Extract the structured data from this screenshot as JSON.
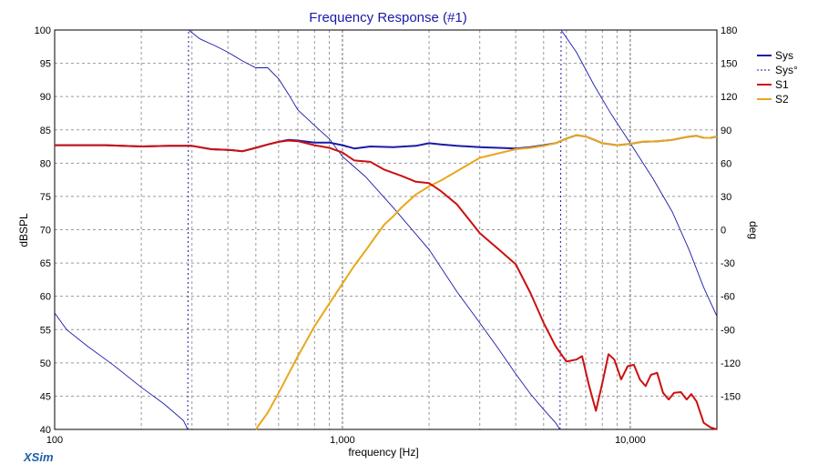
{
  "chart_data": {
    "type": "line",
    "title": "Frequency Response (#1)",
    "xlabel": "frequency [Hz]",
    "ylabel": "dBSPL",
    "y2label": "deg",
    "x_scale": "log",
    "xlim": [
      100,
      20000
    ],
    "ylim": [
      40,
      100
    ],
    "y2lim": [
      -180,
      180
    ],
    "x_tick_labels": [
      {
        "value": 100,
        "label": "100"
      },
      {
        "value": 1000,
        "label": "1,000"
      },
      {
        "value": 10000,
        "label": "10,000"
      }
    ],
    "y_ticks": [
      40,
      45,
      50,
      55,
      60,
      65,
      70,
      75,
      80,
      85,
      90,
      95,
      100
    ],
    "y2_ticks": [
      -150,
      -120,
      -90,
      -60,
      -30,
      0,
      30,
      60,
      90,
      120,
      150,
      180
    ],
    "grid": true,
    "legend_position": "top-right",
    "brand": "XSim",
    "series": [
      {
        "name": "Sys",
        "axis": "left",
        "style": "solid",
        "color": "#1a1aa8",
        "points": [
          [
            100,
            82.7
          ],
          [
            150,
            82.7
          ],
          [
            200,
            82.5
          ],
          [
            250,
            82.6
          ],
          [
            300,
            82.6
          ],
          [
            350,
            82.1
          ],
          [
            400,
            82.0
          ],
          [
            450,
            81.8
          ],
          [
            500,
            82.3
          ],
          [
            550,
            82.8
          ],
          [
            600,
            83.2
          ],
          [
            650,
            83.5
          ],
          [
            700,
            83.4
          ],
          [
            800,
            83.1
          ],
          [
            900,
            83.1
          ],
          [
            1000,
            82.7
          ],
          [
            1100,
            82.2
          ],
          [
            1250,
            82.5
          ],
          [
            1500,
            82.4
          ],
          [
            1800,
            82.6
          ],
          [
            2000,
            83.0
          ],
          [
            2200,
            82.8
          ],
          [
            2500,
            82.6
          ],
          [
            3000,
            82.4
          ],
          [
            3500,
            82.3
          ],
          [
            4000,
            82.2
          ],
          [
            4500,
            82.4
          ],
          [
            5000,
            82.7
          ],
          [
            5500,
            83.0
          ],
          [
            6000,
            83.7
          ],
          [
            6500,
            84.2
          ],
          [
            7000,
            84.0
          ],
          [
            7500,
            83.5
          ],
          [
            8000,
            83.0
          ],
          [
            9000,
            82.7
          ],
          [
            10000,
            82.9
          ],
          [
            11000,
            83.2
          ],
          [
            12500,
            83.3
          ],
          [
            14000,
            83.5
          ],
          [
            16000,
            84.0
          ],
          [
            17000,
            84.1
          ],
          [
            18000,
            83.8
          ],
          [
            19000,
            83.8
          ],
          [
            20000,
            84.0
          ]
        ]
      },
      {
        "name": "Sys°",
        "axis": "right",
        "style": "dashed",
        "color": "#1a1aa8",
        "segments": [
          [
            [
              100,
              -75
            ],
            [
              110,
              -90
            ],
            [
              130,
              -105
            ],
            [
              160,
              -122
            ],
            [
              200,
              -142
            ],
            [
              240,
              -157
            ],
            [
              280,
              -172
            ],
            [
              285,
              -176
            ],
            [
              290,
              -180
            ]
          ],
          [
            [
              290,
              -180
            ],
            [
              292,
              180
            ]
          ],
          [
            [
              292,
              180
            ],
            [
              320,
              172
            ],
            [
              360,
              166
            ],
            [
              400,
              160
            ],
            [
              450,
              152
            ],
            [
              500,
              146
            ],
            [
              550,
              146
            ],
            [
              600,
              136
            ],
            [
              650,
              122
            ],
            [
              700,
              108
            ],
            [
              800,
              94
            ],
            [
              900,
              82
            ],
            [
              1000,
              66
            ],
            [
              1200,
              48
            ],
            [
              1500,
              20
            ],
            [
              2000,
              -18
            ],
            [
              2500,
              -56
            ],
            [
              3000,
              -84
            ],
            [
              3500,
              -108
            ],
            [
              4000,
              -130
            ],
            [
              4500,
              -148
            ],
            [
              5000,
              -162
            ],
            [
              5500,
              -174
            ],
            [
              5700,
              -180
            ]
          ],
          [
            [
              5700,
              -180
            ],
            [
              5750,
              180
            ]
          ],
          [
            [
              5750,
              180
            ],
            [
              6500,
              160
            ],
            [
              7500,
              130
            ],
            [
              8500,
              106
            ],
            [
              10000,
              78
            ],
            [
              12000,
              46
            ],
            [
              14000,
              16
            ],
            [
              16000,
              -18
            ],
            [
              18000,
              -52
            ],
            [
              20000,
              -78
            ]
          ]
        ]
      },
      {
        "name": "S1",
        "axis": "left",
        "style": "solid",
        "color": "#cc1010",
        "points": [
          [
            100,
            82.7
          ],
          [
            150,
            82.7
          ],
          [
            200,
            82.5
          ],
          [
            250,
            82.6
          ],
          [
            300,
            82.6
          ],
          [
            350,
            82.1
          ],
          [
            400,
            82.0
          ],
          [
            450,
            81.8
          ],
          [
            500,
            82.3
          ],
          [
            550,
            82.8
          ],
          [
            600,
            83.2
          ],
          [
            650,
            83.4
          ],
          [
            700,
            83.3
          ],
          [
            800,
            82.7
          ],
          [
            900,
            82.3
          ],
          [
            1000,
            81.6
          ],
          [
            1100,
            80.4
          ],
          [
            1250,
            80.2
          ],
          [
            1400,
            79.0
          ],
          [
            1600,
            78.1
          ],
          [
            1800,
            77.2
          ],
          [
            2000,
            77.0
          ],
          [
            2200,
            75.8
          ],
          [
            2500,
            73.8
          ],
          [
            3000,
            69.5
          ],
          [
            3500,
            67.0
          ],
          [
            4000,
            64.8
          ],
          [
            4500,
            60.5
          ],
          [
            5000,
            56.0
          ],
          [
            5500,
            52.5
          ],
          [
            6000,
            50.2
          ],
          [
            6500,
            50.5
          ],
          [
            6800,
            51.0
          ],
          [
            7200,
            46.5
          ],
          [
            7600,
            42.8
          ],
          [
            8000,
            47.0
          ],
          [
            8400,
            51.3
          ],
          [
            8800,
            50.5
          ],
          [
            9300,
            47.5
          ],
          [
            9800,
            49.5
          ],
          [
            10300,
            49.7
          ],
          [
            10800,
            47.5
          ],
          [
            11300,
            46.5
          ],
          [
            11800,
            48.2
          ],
          [
            12400,
            48.5
          ],
          [
            13000,
            45.5
          ],
          [
            13600,
            44.5
          ],
          [
            14200,
            45.5
          ],
          [
            15000,
            45.6
          ],
          [
            15700,
            44.5
          ],
          [
            16300,
            45.3
          ],
          [
            17000,
            44.2
          ],
          [
            18000,
            41.0
          ],
          [
            19000,
            40.3
          ],
          [
            20000,
            40.0
          ]
        ]
      },
      {
        "name": "S2",
        "axis": "left",
        "style": "solid",
        "color": "#e8a81c",
        "points": [
          [
            500,
            40.0
          ],
          [
            550,
            42.5
          ],
          [
            600,
            45.5
          ],
          [
            700,
            51.0
          ],
          [
            800,
            55.5
          ],
          [
            900,
            58.9
          ],
          [
            1000,
            61.9
          ],
          [
            1100,
            64.6
          ],
          [
            1200,
            66.8
          ],
          [
            1300,
            68.9
          ],
          [
            1400,
            70.8
          ],
          [
            1500,
            72.0
          ],
          [
            1600,
            73.3
          ],
          [
            1800,
            75.3
          ],
          [
            2000,
            76.5
          ],
          [
            2200,
            77.4
          ],
          [
            2500,
            78.8
          ],
          [
            3000,
            80.8
          ],
          [
            3500,
            81.5
          ],
          [
            4000,
            82.1
          ],
          [
            4500,
            82.3
          ],
          [
            5000,
            82.6
          ],
          [
            5500,
            83.0
          ],
          [
            6000,
            83.7
          ],
          [
            6500,
            84.2
          ],
          [
            7000,
            84.0
          ],
          [
            7500,
            83.5
          ],
          [
            8000,
            83.0
          ],
          [
            9000,
            82.7
          ],
          [
            10000,
            82.9
          ],
          [
            11000,
            83.2
          ],
          [
            12500,
            83.3
          ],
          [
            14000,
            83.5
          ],
          [
            16000,
            84.0
          ],
          [
            17000,
            84.1
          ],
          [
            18000,
            83.8
          ],
          [
            19000,
            83.8
          ],
          [
            20000,
            84.0
          ]
        ]
      }
    ]
  }
}
